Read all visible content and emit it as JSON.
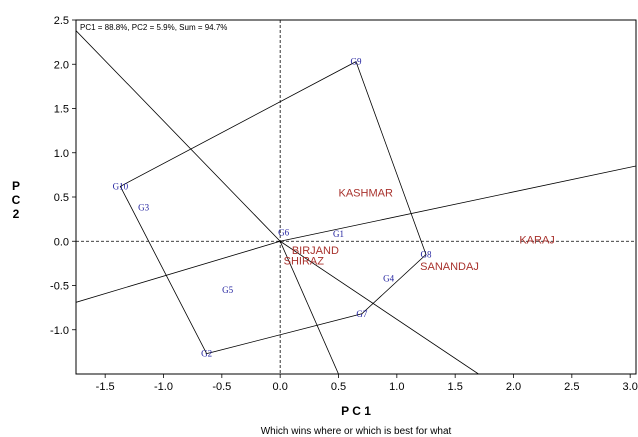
{
  "chart_data": {
    "type": "scatter",
    "annotation": "PC1 = 88.8%, PC2 = 5.9%, Sum = 94.7%",
    "xlabel": "P C 1",
    "ylabel": "P C 2",
    "caption": "Which wins where or which is best for what",
    "xlim": [
      -1.75,
      3.05
    ],
    "ylim": [
      -1.5,
      2.5
    ],
    "x_ticks": [
      -1.5,
      -1.0,
      -0.5,
      0.0,
      0.5,
      1.0,
      1.5,
      2.0,
      2.5,
      3.0
    ],
    "y_ticks": [
      -1.0,
      -0.5,
      0.0,
      0.5,
      1.0,
      1.5,
      2.0,
      2.5
    ],
    "x_tick_labels": [
      "-1.5",
      "-1.0",
      "-0.5",
      "0.0",
      "0.5",
      "1.0",
      "1.5",
      "2.0",
      "2.5",
      "3.0"
    ],
    "y_tick_labels": [
      "-1.0",
      "-0.5",
      "0.0",
      "0.5",
      "1.0",
      "1.5",
      "2.0",
      "2.5"
    ],
    "genotypes": [
      {
        "label": "G1",
        "x": 0.5,
        "y": 0.08
      },
      {
        "label": "G2",
        "x": -0.63,
        "y": -1.27
      },
      {
        "label": "G3",
        "x": -1.17,
        "y": 0.38
      },
      {
        "label": "G4",
        "x": 0.93,
        "y": -0.42
      },
      {
        "label": "G5",
        "x": -0.45,
        "y": -0.55
      },
      {
        "label": "G6",
        "x": 0.03,
        "y": 0.1
      },
      {
        "label": "G7",
        "x": 0.7,
        "y": -0.82
      },
      {
        "label": "G8",
        "x": 1.25,
        "y": -0.15
      },
      {
        "label": "G9",
        "x": 0.65,
        "y": 2.03
      },
      {
        "label": "G10",
        "x": -1.37,
        "y": 0.62
      }
    ],
    "environments": [
      {
        "label": "KASHMAR",
        "x": 0.5,
        "y": 0.55
      },
      {
        "label": "BIRJAND",
        "x": 0.1,
        "y": -0.1
      },
      {
        "label": "SHIRAZ",
        "x": 0.03,
        "y": -0.22
      },
      {
        "label": "SANANDAJ",
        "x": 1.2,
        "y": -0.28
      },
      {
        "label": "KARAJ",
        "x": 2.05,
        "y": 0.02
      }
    ],
    "polygon_vertices": [
      "G9",
      "G8",
      "G7",
      "G2",
      "G10"
    ],
    "sector_rays": [
      {
        "to": [
          -1.75,
          2.38
        ]
      },
      {
        "to": [
          3.05,
          0.85
        ]
      },
      {
        "to": [
          -1.75,
          -0.69
        ]
      },
      {
        "to": [
          0.5,
          -1.5
        ]
      },
      {
        "to": [
          1.7,
          -1.5
        ]
      }
    ]
  }
}
